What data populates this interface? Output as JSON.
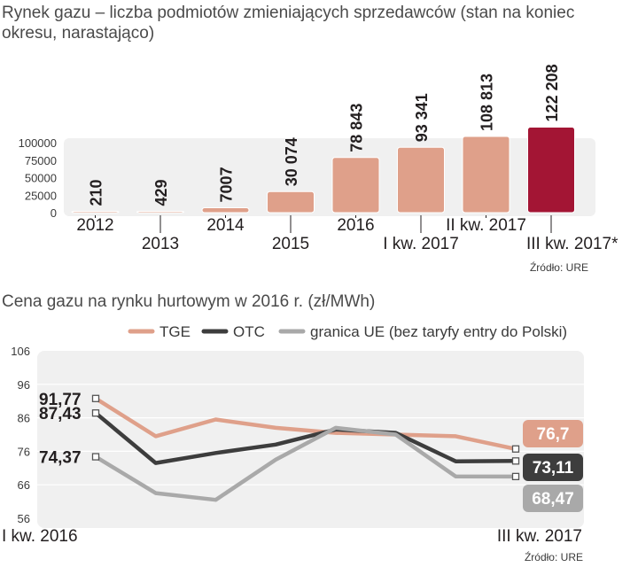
{
  "chart_data": [
    {
      "type": "bar",
      "title": "Rynek gazu – liczba podmiotów zmieniających sprzedawców (stan na koniec okresu, narastająco)",
      "categories": [
        "2012",
        "2013",
        "2014",
        "2015",
        "2016",
        "I kw. 2017",
        "II kw. 2017",
        "III kw. 2017*"
      ],
      "values": [
        210,
        429,
        7007,
        30074,
        78843,
        93341,
        108813,
        122208
      ],
      "value_labels": [
        "210",
        "429",
        "7007",
        "30 074",
        "78 843",
        "93 341",
        "108 813",
        "122 208"
      ],
      "y_ticks": [
        "100000",
        "75000",
        "50000",
        "25000",
        "0"
      ],
      "ylim": [
        0,
        100000
      ],
      "source": "Źródło: URE",
      "colors": {
        "bar": "#dfa08a",
        "highlight": "#a31534",
        "panel": "#f0f0f0"
      }
    },
    {
      "type": "line",
      "title": "Cena gazu na rynku hurtowym w 2016 r. (zł/MWh)",
      "ylim": [
        56,
        106
      ],
      "y_ticks": [
        "106",
        "96",
        "86",
        "76",
        "66",
        "56"
      ],
      "x_start_label": "I kw. 2016",
      "x_end_label": "III kw. 2017",
      "series": [
        {
          "name": "TGE",
          "color": "#dfa08a",
          "values": [
            91.77,
            80.5,
            85.5,
            83.0,
            81.5,
            81.0,
            80.5,
            76.7
          ],
          "start_label": "91,77",
          "end_label": "76,7"
        },
        {
          "name": "OTC",
          "color": "#3d3d3d",
          "values": [
            87.43,
            72.5,
            75.5,
            78.0,
            82.5,
            81.5,
            73.0,
            73.11
          ],
          "start_label": "87,43",
          "end_label": "73,11"
        },
        {
          "name": "granica UE (bez taryfy entry do Polski)",
          "color": "#a9a9a9",
          "values": [
            74.37,
            63.5,
            61.5,
            73.5,
            83.0,
            81.0,
            68.5,
            68.47
          ],
          "start_label": "74,37",
          "end_label": "68,47"
        }
      ],
      "source": "Źródło: URE",
      "colors": {
        "panel": "#f0f0f0",
        "grid": "#ffffff"
      }
    }
  ]
}
